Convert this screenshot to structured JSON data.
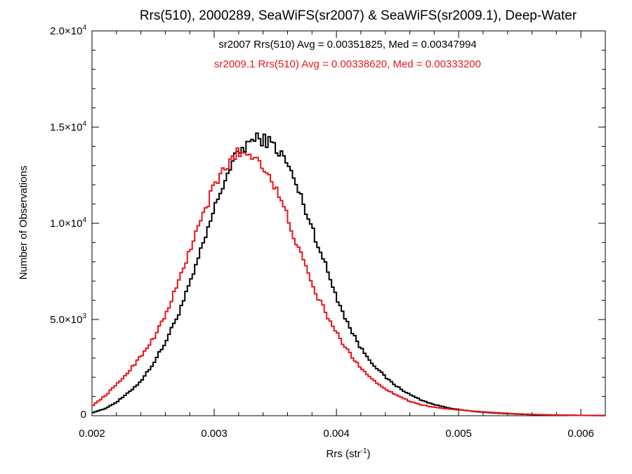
{
  "chart_data": {
    "type": "line",
    "step": true,
    "title": "Rrs(510), 2000289, SeaWiFS(sr2007) & SeaWiFS(sr2009.1), Deep-Water",
    "xlabel": "Rrs (str",
    "xlabel_sup": "-1",
    "xlabel_end": ")",
    "ylabel": "Number of Observations",
    "xlim": [
      0.002,
      0.0062
    ],
    "ylim": [
      0,
      20000
    ],
    "grid": false,
    "x_ticks": [
      {
        "value": 0.002,
        "label": "0.002"
      },
      {
        "value": 0.003,
        "label": "0.003"
      },
      {
        "value": 0.004,
        "label": "0.004"
      },
      {
        "value": 0.005,
        "label": "0.005"
      },
      {
        "value": 0.006,
        "label": "0.006"
      }
    ],
    "y_ticks": [
      {
        "value": 0,
        "label": "0",
        "sup": ""
      },
      {
        "value": 5000,
        "label": "5.0×10",
        "sup": "3"
      },
      {
        "value": 10000,
        "label": "1.0×10",
        "sup": "4"
      },
      {
        "value": 15000,
        "label": "1.5×10",
        "sup": "4"
      },
      {
        "value": 20000,
        "label": "2.0×10",
        "sup": "4"
      }
    ],
    "annotations": [
      {
        "text": "sr2007 Rrs(510) Avg = 0.00351825, Med = 0.00347994",
        "color": "#000000"
      },
      {
        "text": "sr2009.1 Rrs(510) Avg = 0.00338620, Med = 0.00333200",
        "color": "#e8161b"
      }
    ],
    "series": [
      {
        "color": "#000000",
        "x": [
          0.002,
          0.0021,
          0.0022,
          0.0023,
          0.0024,
          0.0025,
          0.0026,
          0.0027,
          0.0028,
          0.0029,
          0.003,
          0.0031,
          0.0032,
          0.0033,
          0.0034,
          0.0035,
          0.0036,
          0.0037,
          0.0038,
          0.0039,
          0.004,
          0.0041,
          0.0042,
          0.0043,
          0.0044,
          0.0045,
          0.0046,
          0.0047,
          0.0048,
          0.0049,
          0.005,
          0.0051,
          0.0052,
          0.0053,
          0.0054,
          0.0055,
          0.0056,
          0.0057,
          0.0058,
          0.0059,
          0.006,
          0.0061,
          0.0062
        ],
        "values": [
          150,
          350,
          700,
          1200,
          1800,
          2700,
          3800,
          5200,
          6800,
          8700,
          10700,
          12500,
          13700,
          14300,
          14400,
          14000,
          13100,
          11500,
          9800,
          8000,
          6200,
          4700,
          3500,
          2700,
          2000,
          1500,
          1100,
          800,
          580,
          430,
          320,
          240,
          180,
          140,
          105,
          80,
          60,
          45,
          35,
          25,
          18,
          12,
          8
        ]
      },
      {
        "color": "#e8161b",
        "x": [
          0.002,
          0.0021,
          0.0022,
          0.0023,
          0.0024,
          0.0025,
          0.0026,
          0.0027,
          0.0028,
          0.0029,
          0.003,
          0.0031,
          0.0032,
          0.0033,
          0.0034,
          0.0035,
          0.0036,
          0.0037,
          0.0038,
          0.0039,
          0.004,
          0.0041,
          0.0042,
          0.0043,
          0.0044,
          0.0045,
          0.0046,
          0.0047,
          0.0048,
          0.0049,
          0.005,
          0.0051,
          0.0052,
          0.0053,
          0.0054,
          0.0055,
          0.0056,
          0.0057,
          0.0058,
          0.0059,
          0.006,
          0.0061,
          0.0062
        ],
        "values": [
          500,
          1000,
          1600,
          2300,
          3100,
          4000,
          5200,
          6800,
          8600,
          10300,
          11900,
          13000,
          13700,
          13600,
          13100,
          11800,
          10300,
          8500,
          6800,
          5500,
          4300,
          3300,
          2500,
          1850,
          1400,
          1050,
          750,
          560,
          440,
          360,
          300,
          250,
          200,
          160,
          125,
          95,
          70,
          52,
          40,
          30,
          22,
          15,
          10
        ]
      }
    ]
  }
}
